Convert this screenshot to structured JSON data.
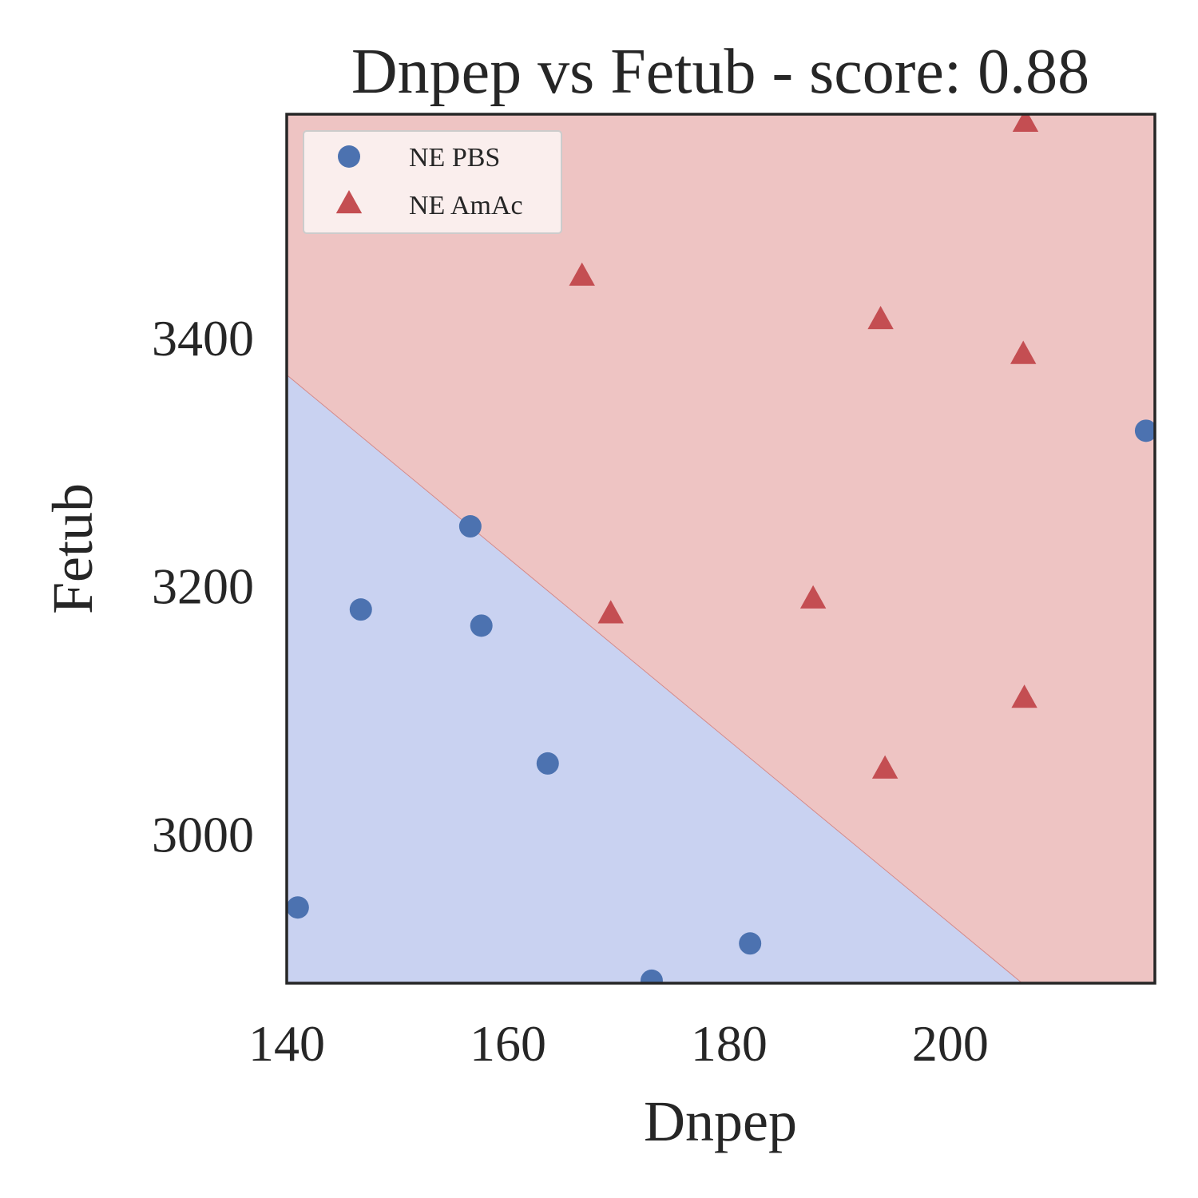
{
  "chart_data": {
    "type": "scatter",
    "title": "Dnpep vs Fetub - score: 0.88",
    "xlabel": "Dnpep",
    "ylabel": "Fetub",
    "xlim": [
      140,
      218.5
    ],
    "ylim": [
      2880,
      3580
    ],
    "xticks": [
      140,
      160,
      180,
      200
    ],
    "yticks": [
      3000,
      3200,
      3400
    ],
    "grid": false,
    "legend": {
      "placement": "top-left"
    },
    "decision_boundary": {
      "from": [
        140,
        3370
      ],
      "to": [
        206.5,
        2880
      ],
      "below_color": "#c9d2f1",
      "above_color": "#eec4c3"
    },
    "series": [
      {
        "name": "NE PBS",
        "marker": "circle",
        "color": "#4c72b0",
        "points": [
          [
            141,
            2941
          ],
          [
            146.7,
            3181
          ],
          [
            156.6,
            3248
          ],
          [
            157.6,
            3168
          ],
          [
            163.6,
            3057
          ],
          [
            181.9,
            2912
          ],
          [
            173,
            2882
          ],
          [
            217.7,
            3325
          ]
        ]
      },
      {
        "name": "NE AmAc",
        "marker": "triangle",
        "color": "#c44e52",
        "points": [
          [
            166.7,
            3449
          ],
          [
            169.3,
            3177
          ],
          [
            187.6,
            3189
          ],
          [
            193.7,
            3414
          ],
          [
            194.1,
            3052
          ],
          [
            206.6,
            3386
          ],
          [
            206.7,
            3109
          ],
          [
            206.8,
            3573
          ]
        ]
      }
    ]
  }
}
